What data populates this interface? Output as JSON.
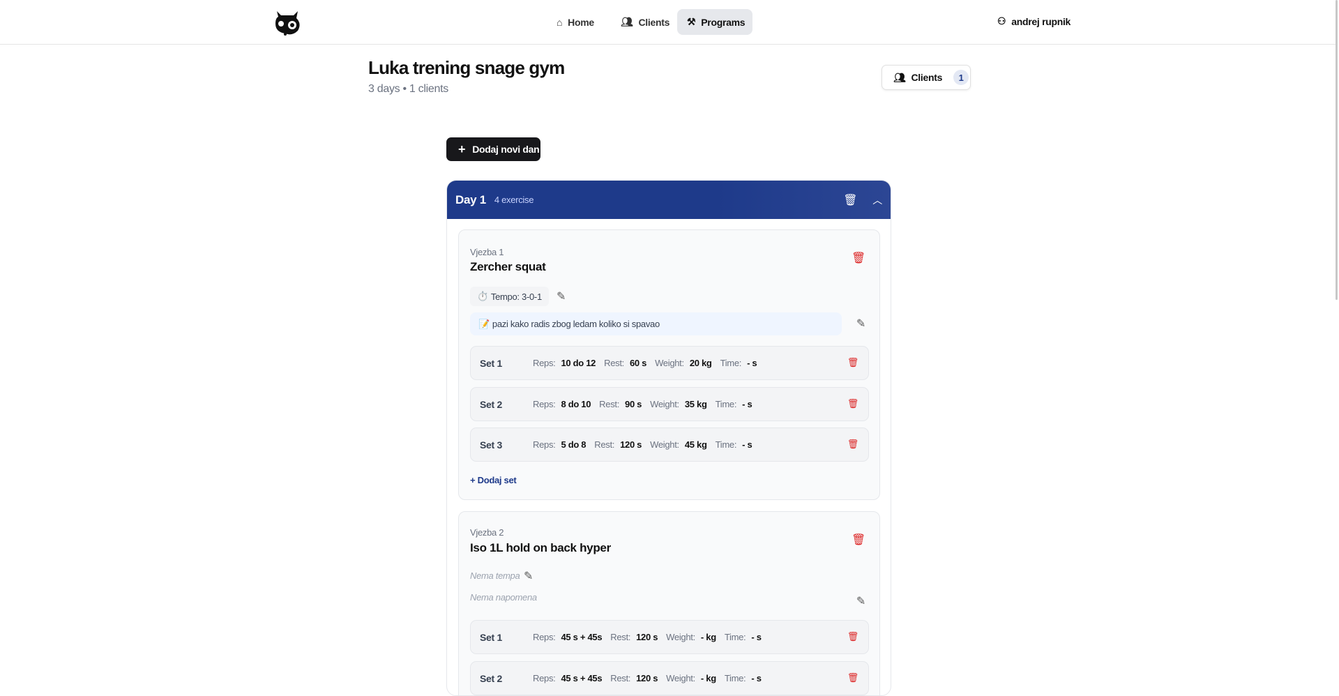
{
  "nav": {
    "items": [
      {
        "label": "Home",
        "icon": "home-icon"
      },
      {
        "label": "Clients",
        "icon": "users-icon"
      },
      {
        "label": "Programs",
        "icon": "dumbbell-icon",
        "active": true
      }
    ],
    "user": "andrej rupnik"
  },
  "program": {
    "title": "Luka trening snage gym",
    "subtitle": "3 days • 1 clients",
    "clients_label": "Clients",
    "clients_count": "1",
    "add_day_label": "Dodaj novi dan"
  },
  "colors": {
    "accent": "#1e3a8a",
    "danger": "#dc2626",
    "dark": "#18181b"
  },
  "day": {
    "title": "Day 1",
    "count": "4 exercise"
  },
  "labels": {
    "reps": "Reps:",
    "rest": "Rest:",
    "weight": "Weight:",
    "time": "Time:",
    "add_set": "+ Dodaj set"
  },
  "exercises": [
    {
      "label": "Vjezba 1",
      "name": "Zercher squat",
      "tempo": "Tempo: 3-0-1",
      "tempo_icon": "⏱️",
      "note": "pazi kako radis zbog ledam koliko si spavao",
      "note_icon": "📝",
      "sets": [
        {
          "label": "Set 1",
          "reps": "10 do 12",
          "rest": "60 s",
          "weight": "20 kg",
          "time": "- s"
        },
        {
          "label": "Set 2",
          "reps": "8 do 10",
          "rest": "90 s",
          "weight": "35 kg",
          "time": "- s"
        },
        {
          "label": "Set 3",
          "reps": "5 do 8",
          "rest": "120 s",
          "weight": "45 kg",
          "time": "- s"
        }
      ]
    },
    {
      "label": "Vjezba 2",
      "name": "Iso 1L hold on back hyper",
      "tempo": "Nema tempa",
      "note": "Nema napomena",
      "sets": [
        {
          "label": "Set 1",
          "reps": "45 s + 45s",
          "rest": "120 s",
          "weight": "- kg",
          "time": "- s"
        },
        {
          "label": "Set 2",
          "reps": "45 s + 45s",
          "rest": "120 s",
          "weight": "- kg",
          "time": "- s"
        }
      ]
    }
  ]
}
